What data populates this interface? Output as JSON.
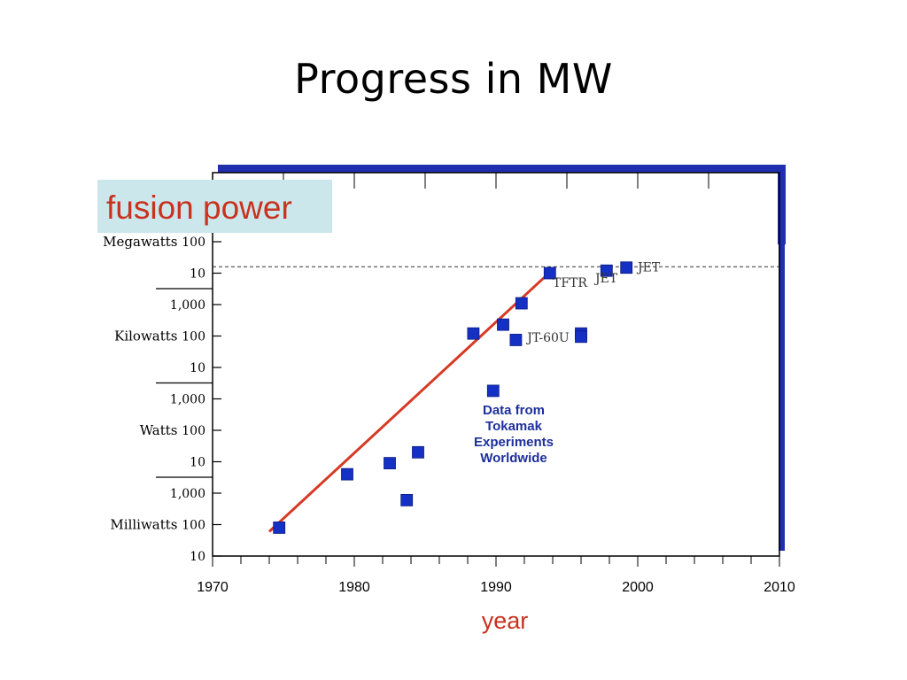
{
  "slide": {
    "title": "Progress in MW"
  },
  "colors": {
    "frame": "#1f2fb0",
    "marker": "#1530c4",
    "trend": "#d63a25",
    "badge_bg": "#cce7ec",
    "badge_text": "#c8321e",
    "annotation_text": "#1d2f9b",
    "axis": "#000000"
  },
  "chart_data": {
    "type": "scatter",
    "badge": "fusion power",
    "xlabel": "year",
    "xlim": [
      1970,
      2010
    ],
    "x_ticks": [
      "1970",
      "1980",
      "1990",
      "2000",
      "2010"
    ],
    "y_scale": "log",
    "y_unit": "watts",
    "ylim": [
      0.01,
      100000000
    ],
    "y_tick_labels": [
      {
        "number": "10",
        "unit": "",
        "watts": 0.01
      },
      {
        "number": "100",
        "unit": "Milliwatts",
        "watts": 0.1
      },
      {
        "number": "1,000",
        "unit": "",
        "watts": 1
      },
      {
        "number": "10",
        "unit": "",
        "watts": 10
      },
      {
        "number": "100",
        "unit": "Watts",
        "watts": 100
      },
      {
        "number": "1,000",
        "unit": "",
        "watts": 1000
      },
      {
        "number": "10",
        "unit": "",
        "watts": 10000
      },
      {
        "number": "100",
        "unit": "Kilowatts",
        "watts": 100000
      },
      {
        "number": "1,000",
        "unit": "",
        "watts": 1000000
      },
      {
        "number": "10",
        "unit": "",
        "watts": 10000000
      },
      {
        "number": "100",
        "unit": "Megawatts",
        "watts": 100000000
      }
    ],
    "unit_dividers_watts": [
      1,
      1000,
      1000000
    ],
    "reference_line_watts": 16000000,
    "points": [
      {
        "year": 1974.7,
        "watts": 0.08
      },
      {
        "year": 1979.5,
        "watts": 4
      },
      {
        "year": 1982.5,
        "watts": 9
      },
      {
        "year": 1983.7,
        "watts": 0.6
      },
      {
        "year": 1984.5,
        "watts": 20
      },
      {
        "year": 1988.4,
        "watts": 120000
      },
      {
        "year": 1989.8,
        "watts": 1800
      },
      {
        "year": 1990.5,
        "watts": 230000
      },
      {
        "year": 1991.4,
        "watts": 75000
      },
      {
        "year": 1991.8,
        "watts": 1100000
      },
      {
        "year": 1993.8,
        "watts": 10000000
      },
      {
        "year": 1996.0,
        "watts": 120000
      },
      {
        "year": 1996.0,
        "watts": 95000
      },
      {
        "year": 1997.8,
        "watts": 12000000
      },
      {
        "year": 1999.2,
        "watts": 15000000
      }
    ],
    "trend_line": {
      "x": [
        1974,
        1993.5
      ],
      "watts": [
        0.06,
        8000000
      ]
    },
    "point_labels": [
      {
        "text": "TFTR",
        "year": 1994.0,
        "watts": 5000000
      },
      {
        "text": "JET",
        "year": 1997.0,
        "watts": 7000000
      },
      {
        "text": "JET",
        "year": 2000.0,
        "watts": 16000000
      },
      {
        "text": "JT-60U",
        "year": 1992.2,
        "watts": 90000
      }
    ],
    "annotation": [
      "Data from",
      "Tokamak",
      "Experiments",
      "Worldwide"
    ]
  }
}
